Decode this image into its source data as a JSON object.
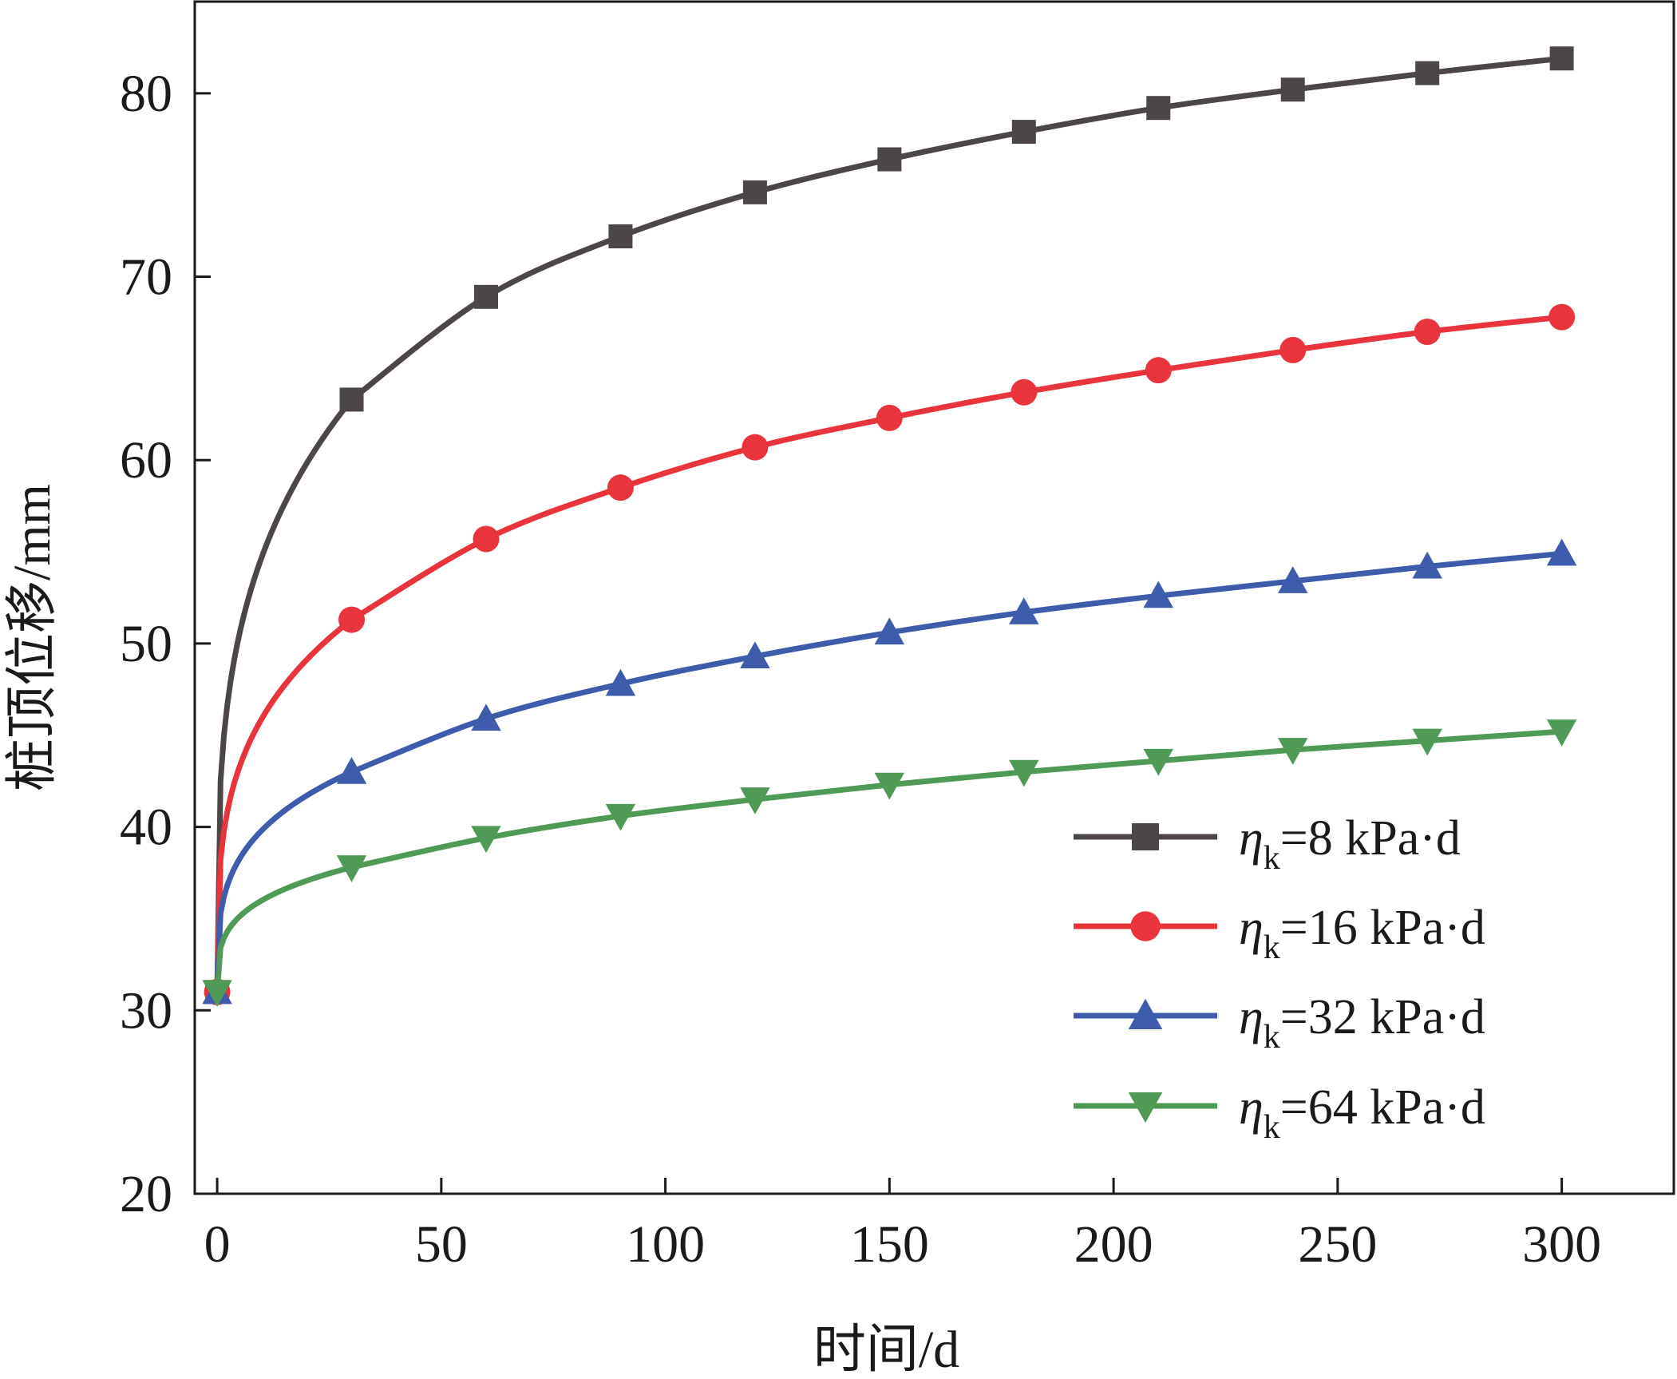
{
  "chart_data": {
    "type": "line",
    "title": "",
    "xlabel": "时间/d",
    "ylabel": "桩顶位移/mm",
    "xlim": [
      -5,
      325
    ],
    "ylim": [
      20,
      85
    ],
    "x_ticks": [
      0,
      50,
      100,
      150,
      200,
      250,
      300
    ],
    "y_ticks": [
      20,
      30,
      40,
      50,
      60,
      70,
      80
    ],
    "grid": false,
    "legend_position": "lower-right",
    "x": [
      0,
      30,
      60,
      90,
      120,
      150,
      180,
      210,
      240,
      270,
      300
    ],
    "series": [
      {
        "name": "η",
        "name_sub": "k",
        "name_rest": "=8 kPa·d",
        "color": "#4d4646",
        "marker": "square",
        "values": [
          31.0,
          63.3,
          68.9,
          72.2,
          74.6,
          76.4,
          77.9,
          79.2,
          80.2,
          81.1,
          81.9
        ]
      },
      {
        "name": "η",
        "name_sub": "k",
        "name_rest": "=16 kPa·d",
        "color": "#e8343a",
        "marker": "circle",
        "values": [
          31.0,
          51.3,
          55.7,
          58.5,
          60.7,
          62.3,
          63.7,
          64.9,
          66.0,
          67.0,
          67.8
        ]
      },
      {
        "name": "η",
        "name_sub": "k",
        "name_rest": "=32 kPa·d",
        "color": "#3f5cac",
        "marker": "triangle-up",
        "values": [
          31.0,
          43.0,
          45.9,
          47.8,
          49.3,
          50.6,
          51.7,
          52.6,
          53.4,
          54.2,
          54.9
        ]
      },
      {
        "name": "η",
        "name_sub": "k",
        "name_rest": "=64 kPa·d",
        "color": "#4e9a56",
        "marker": "triangle-down",
        "values": [
          31.0,
          37.8,
          39.4,
          40.6,
          41.5,
          42.3,
          43.0,
          43.6,
          44.2,
          44.7,
          45.2
        ]
      }
    ]
  }
}
